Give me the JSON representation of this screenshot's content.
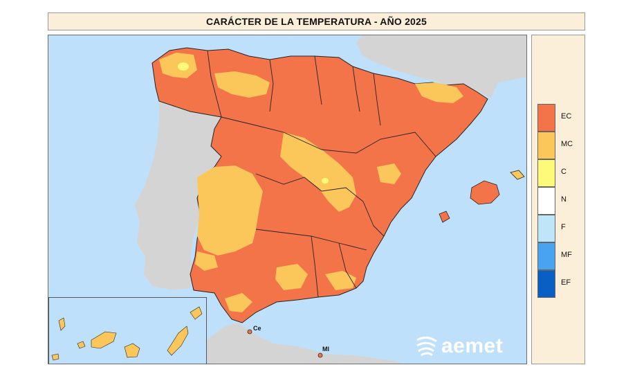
{
  "title": "CARÁCTER DE LA TEMPERATURA - AÑO 2025",
  "legend": [
    {
      "code": "EC",
      "color": "#f4744a"
    },
    {
      "code": "MC",
      "color": "#fbc75a"
    },
    {
      "code": "C",
      "color": "#fdfa7a"
    },
    {
      "code": "N",
      "color": "#ffffff"
    },
    {
      "code": "F",
      "color": "#bfe6f8"
    },
    {
      "code": "MF",
      "color": "#4aa3f0"
    },
    {
      "code": "EF",
      "color": "#0a5fc4"
    }
  ],
  "cities": {
    "ceuta": "Ce",
    "melilla": "Ml"
  },
  "logo_text": "aemet",
  "colors": {
    "sea": "#bfe0fa",
    "land_foreign": "#d4d4d4",
    "panel": "#fbefd9"
  }
}
